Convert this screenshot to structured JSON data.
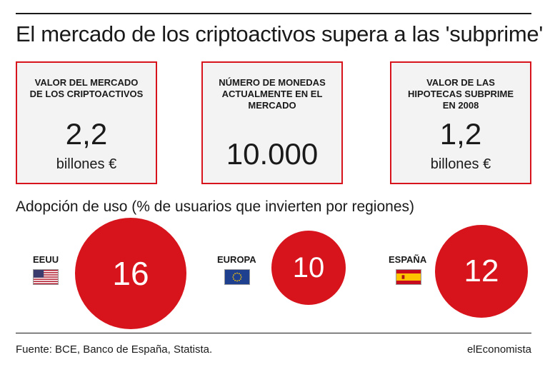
{
  "title": "El mercado de los criptoactivos supera a las 'subprime'",
  "cards": [
    {
      "label": "VALOR DEL MERCADO DE LOS CRIPTOACTIVOS",
      "value": "2,2",
      "unit": "billones €"
    },
    {
      "label": "NÚMERO DE MONEDAS ACTUALMENTE EN EL MERCADO",
      "value": "10.000",
      "unit": ""
    },
    {
      "label": "VALOR DE LAS HIPOTECAS SUBPRIME EN 2008",
      "value": "1,2",
      "unit": "billones €"
    }
  ],
  "adoption_title": "Adopción de uso (% de usuarios que invierten por regiones)",
  "colors": {
    "accent": "#d7141c",
    "card_bg": "#f3f3f3"
  },
  "chart_data": {
    "type": "bubble",
    "title": "Adopción de uso (% de usuarios que invierten por regiones)",
    "categories": [
      "EEUU",
      "EUROPA",
      "ESPAÑA"
    ],
    "values": [
      16,
      10,
      12
    ],
    "flags": [
      "us-flag-icon",
      "eu-flag-icon",
      "es-flag-icon"
    ]
  },
  "footer": {
    "source": "Fuente: BCE, Banco de España, Statista.",
    "brand": "elEconomista"
  }
}
